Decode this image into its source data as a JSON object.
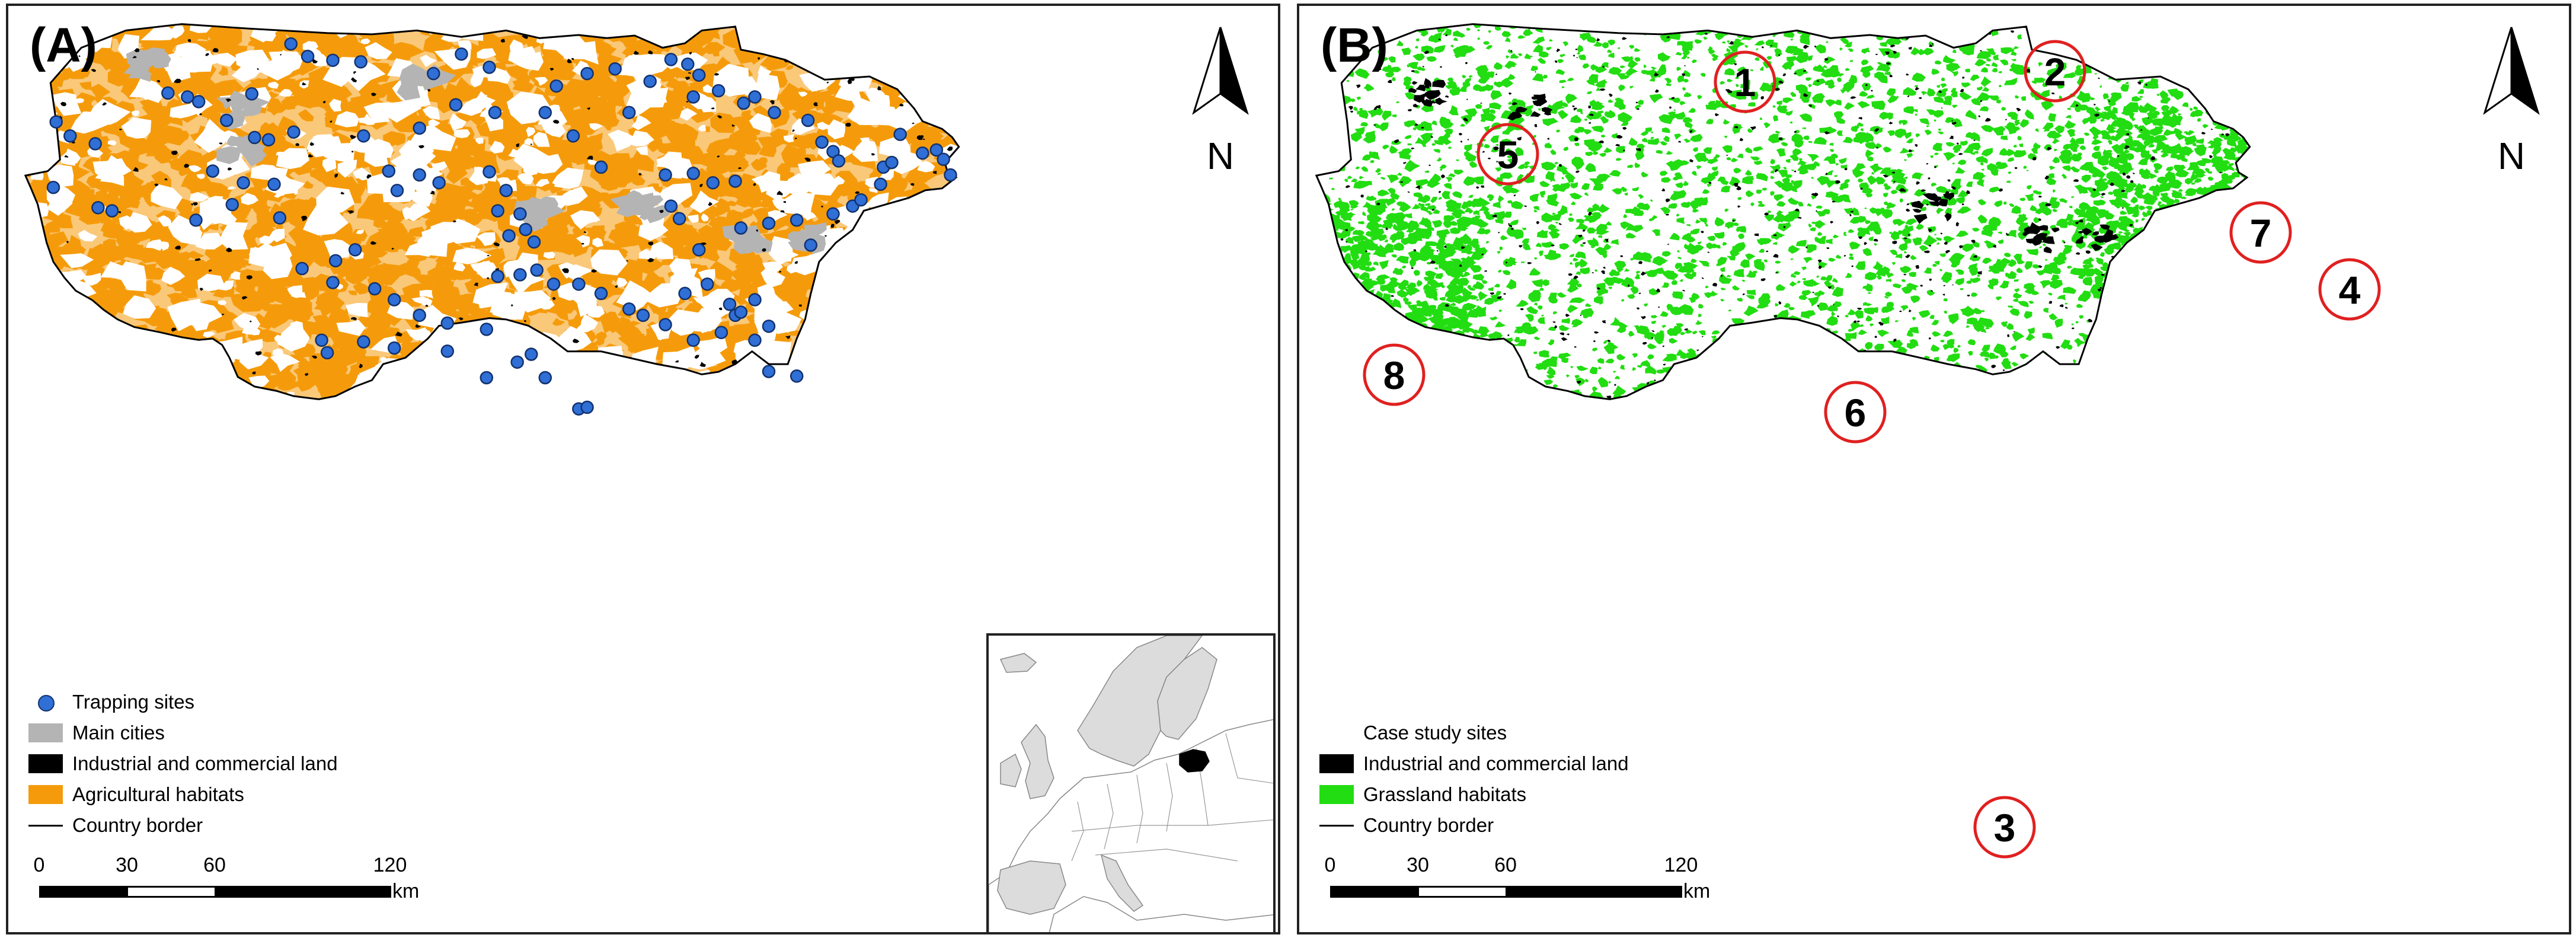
{
  "panel_a": {
    "label": "(A)",
    "north_letter": "N",
    "legend": {
      "items": [
        {
          "label": "Trapping sites",
          "symbol": "dot",
          "color": "#2f6fd6"
        },
        {
          "label": "Main cities",
          "symbol": "box",
          "color": "#b4b4b4"
        },
        {
          "label": "Industrial and commercial land",
          "symbol": "box",
          "color": "#000000"
        },
        {
          "label": "Agricultural habitats",
          "symbol": "box",
          "color": "#f59b0b"
        },
        {
          "label": "Country border",
          "symbol": "line",
          "color": "#000000"
        }
      ]
    },
    "scale": {
      "ticks": [
        "0",
        "30",
        "60",
        "120"
      ],
      "unit": "km"
    }
  },
  "panel_b": {
    "label": "(B)",
    "north_letter": "N",
    "legend": {
      "heading": "Case study sites",
      "items": [
        {
          "label": "Industrial and commercial land",
          "symbol": "box",
          "color": "#000000"
        },
        {
          "label": "Grassland habitats",
          "symbol": "box",
          "color": "#22dd11"
        },
        {
          "label": "Country border",
          "symbol": "line",
          "color": "#000000"
        }
      ]
    },
    "scale": {
      "ticks": [
        "0",
        "30",
        "60",
        "120"
      ],
      "unit": "km"
    },
    "case_sites": [
      "1",
      "2",
      "3",
      "4",
      "5",
      "6",
      "7",
      "8"
    ]
  },
  "colors": {
    "agricultural": "#f59b0b",
    "grassland": "#22dd11",
    "industrial": "#000000",
    "cities": "#b4b4b4",
    "trapping": "#2f6fd6",
    "site_circle": "#e02020",
    "inset_land": "#dcdcdc",
    "inset_highlight": "#000000"
  }
}
